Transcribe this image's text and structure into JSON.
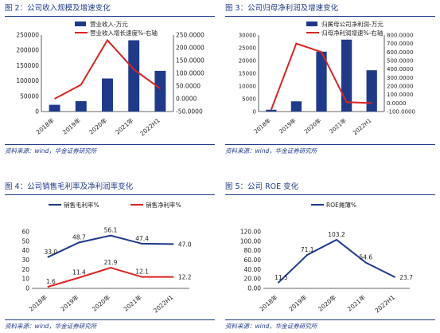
{
  "panels": [
    {
      "title": "图 2：公司收入规模及增速变化",
      "source": "资料来源：wind，华金证券研究所"
    },
    {
      "title": "图 3：公司归母净利润及增速变化",
      "source": "资料来源：wind，华金证券研究所"
    },
    {
      "title": "图 4：公司销售毛利率及净利润率变化",
      "source": "资料来源：wind，华金证券研究所"
    },
    {
      "title": "图 5：公司 ROE 变化",
      "source": "资料来源：wind，华金证券研究所"
    }
  ],
  "chart_data": [
    {
      "type": "bar",
      "categories": [
        "2018年",
        "2019年",
        "2020年",
        "2021年",
        "2022H1"
      ],
      "series": [
        {
          "name": "营业收入-万元",
          "type": "bar",
          "values": [
            22000,
            34000,
            108000,
            233000,
            133000
          ],
          "color": "#1f3a8a"
        },
        {
          "name": "营业收入增长速度%-右轴",
          "type": "line",
          "axis": "right",
          "values": [
            0,
            55,
            230,
            115,
            40
          ],
          "color": "#dd2222"
        }
      ],
      "ylim": [
        0,
        250000
      ],
      "yticks": [
        "0",
        "50000",
        "100000",
        "150000",
        "200000",
        "250000"
      ],
      "y2lim": [
        -50,
        250
      ],
      "y2ticks": [
        "-50.0000",
        "0.0000",
        "50.0000",
        "100.0000",
        "150.0000",
        "200.0000",
        "250.0000"
      ],
      "legend": "top"
    },
    {
      "type": "bar",
      "categories": [
        "2018年",
        "2019年",
        "2020年",
        "2021年",
        "2022H1"
      ],
      "series": [
        {
          "name": "归属母公司净利润-万元",
          "type": "bar",
          "values": [
            700,
            4000,
            23500,
            28200,
            16200
          ],
          "color": "#1f3a8a"
        },
        {
          "name": "归母净利润增速%-右轴",
          "type": "line",
          "axis": "right",
          "values": [
            -80,
            700,
            600,
            10,
            0
          ],
          "color": "#dd2222"
        }
      ],
      "ylim": [
        0,
        30000
      ],
      "yticks": [
        "0",
        "5000",
        "10000",
        "15000",
        "20000",
        "25000",
        "30000"
      ],
      "y2lim": [
        -100,
        800
      ],
      "y2ticks": [
        "-100.0000",
        "0.0000",
        "100.0000",
        "200.0000",
        "300.0000",
        "400.0000",
        "500.0000",
        "600.0000",
        "700.0000",
        "800.0000"
      ],
      "legend": "top"
    },
    {
      "type": "line",
      "categories": [
        "2018年",
        "2019年",
        "2020年",
        "2021年",
        "2022H1"
      ],
      "series": [
        {
          "name": "销售毛利率%",
          "values": [
            33.0,
            48.7,
            56.1,
            47.4,
            47.0
          ],
          "labels": [
            "33.0",
            "48.7",
            "56.1",
            "47.4",
            "47.0"
          ],
          "color": "#1f3a8a"
        },
        {
          "name": "销售净利率%",
          "values": [
            1.6,
            11.4,
            21.9,
            12.1,
            12.2
          ],
          "labels": [
            "1.6",
            "11.4",
            "21.9",
            "12.1",
            "12.2"
          ],
          "color": "#dd2222"
        }
      ],
      "ylim": [
        0,
        60
      ],
      "yticks": [
        "0",
        "10",
        "20",
        "30",
        "40",
        "50",
        "60"
      ],
      "legend": "top"
    },
    {
      "type": "line",
      "categories": [
        "2018年",
        "2019年",
        "2020年",
        "2021年",
        "2022H1"
      ],
      "series": [
        {
          "name": "ROE摊薄%",
          "values": [
            11.5,
            71.1,
            103.2,
            54.6,
            23.7
          ],
          "labels": [
            "11.5",
            "71.1",
            "103.2",
            "54.6",
            "23.7"
          ],
          "color": "#1f3a8a"
        }
      ],
      "ylim": [
        0,
        120
      ],
      "yticks": [
        "0.00",
        "20.00",
        "40.00",
        "60.00",
        "80.00",
        "100.00",
        "120.00"
      ],
      "legend": "top"
    }
  ]
}
